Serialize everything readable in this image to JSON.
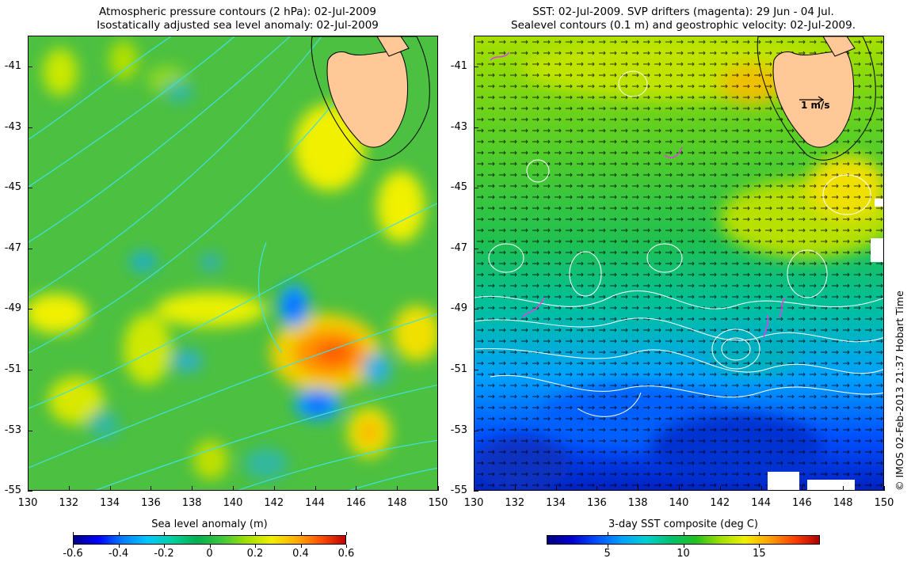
{
  "left_panel": {
    "title_line1": "Atmospheric pressure contours (2 hPa): 02-Jul-2009",
    "title_line2": "Isostatically adjusted sea level anomaly: 02-Jul-2009",
    "colorbar_label": "Sea level anomaly (m)",
    "colorbar_ticks": [
      "-0.6",
      "-0.4",
      "-0.2",
      "0",
      "0.2",
      "0.4",
      "0.6"
    ],
    "contour_color": "#40e0e0",
    "land_color": "#ffc896"
  },
  "right_panel": {
    "title_line1": "SST: 02-Jul-2009. SVP drifters (magenta): 29 Jun - 04 Jul.",
    "title_line2": "Sealevel contours (0.1 m) and geostrophic velocity: 02-Jul-2009.",
    "colorbar_label": "3-day SST composite (deg C)",
    "colorbar_ticks": [
      "5",
      "10",
      "15"
    ],
    "scale_arrow_label": "1 m/s",
    "contour_color": "#ffffff",
    "drifter_color": "#e040e0"
  },
  "axes": {
    "x_ticks": [
      "130",
      "132",
      "134",
      "136",
      "138",
      "140",
      "142",
      "144",
      "146",
      "148",
      "150"
    ],
    "y_ticks": [
      "-41",
      "-43",
      "-45",
      "-47",
      "-49",
      "-51",
      "-53",
      "-55"
    ]
  },
  "credit": "© IMOS 02-Feb-2013 21:37 Hobart Time"
}
